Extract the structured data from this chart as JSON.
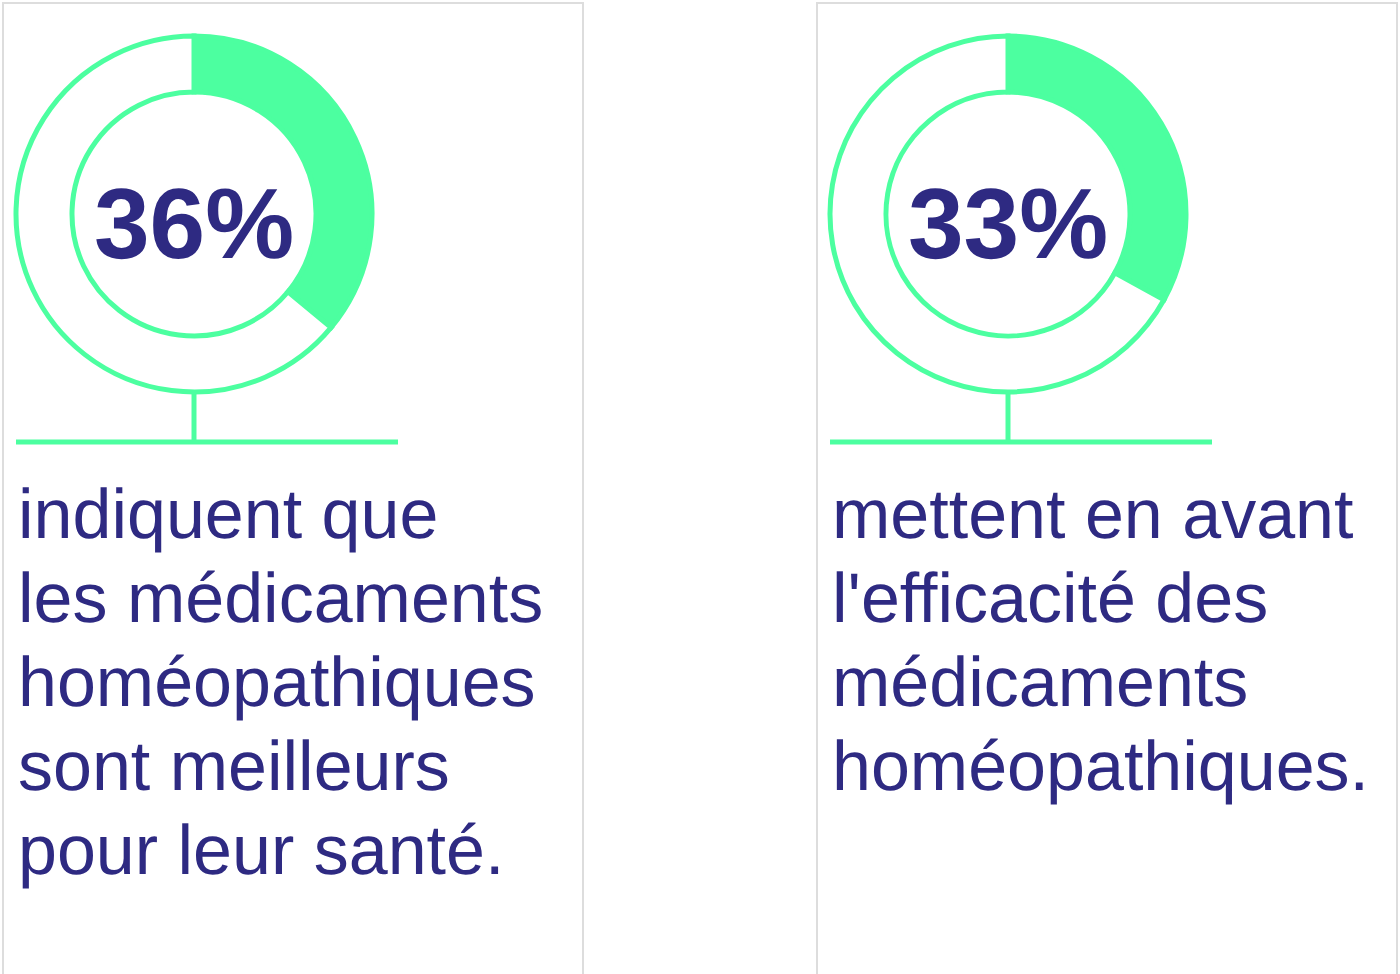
{
  "chart_data": [
    {
      "type": "donut",
      "title": "36%",
      "categories": [
        null,
        null
      ],
      "values": [
        36,
        64
      ],
      "colors": [
        "#4cffa0",
        "#ffffff"
      ],
      "annotations": [
        "indiquent que les médicaments homéopathiques sont meilleurs pour leur santé."
      ]
    },
    {
      "type": "donut",
      "title": "33%",
      "categories": [
        null,
        null
      ],
      "values": [
        33,
        67
      ],
      "colors": [
        "#4cffa0",
        "#ffffff"
      ],
      "annotations": [
        "mettent en avant l'efficacité des médicaments homéopathiques."
      ]
    }
  ]
}
